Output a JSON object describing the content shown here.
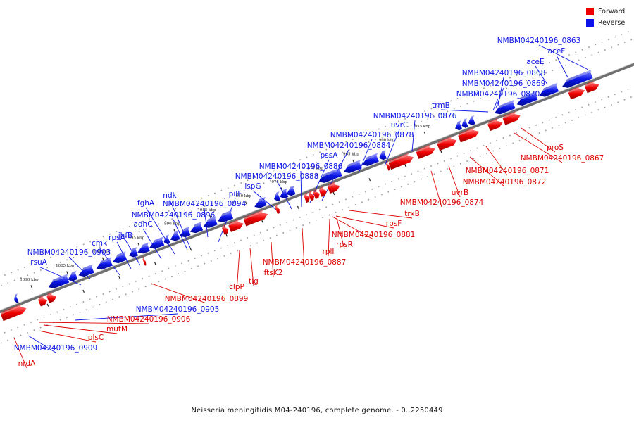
{
  "caption": "Neisseria meningitidis M04-240196, complete genome. - 0..2250449",
  "legend": [
    {
      "label": "Forward",
      "color": "#ee0000"
    },
    {
      "label": "Reverse",
      "color": "#0a14e6"
    }
  ],
  "colors": {
    "forward": "#ee0000",
    "reverse": "#0a14e6",
    "backbone": "#777777"
  },
  "ticks": [
    {
      "label": "955 kbp"
    },
    {
      "label": "960 kbp"
    },
    {
      "label": "965 kbp"
    },
    {
      "label": "970 kbp"
    },
    {
      "label": "975 kbp"
    },
    {
      "label": "980 kbp"
    },
    {
      "label": "985 kbp"
    },
    {
      "label": "990 kbp"
    },
    {
      "label": "995 kbp"
    },
    {
      "label": "1000 kbp"
    },
    {
      "label": "1005 kbp"
    },
    {
      "label": "1010 kbp"
    }
  ],
  "reverse_genes": [
    {
      "label": "NMBM04240196_0863"
    },
    {
      "label": "aceF"
    },
    {
      "label": "aceE"
    },
    {
      "label": "NMBM04240196_0868"
    },
    {
      "label": "NMBM04240196_0869"
    },
    {
      "label": "NMBM04240196_0870"
    },
    {
      "label": "trmB"
    },
    {
      "label": "NMBM04240196_0876"
    },
    {
      "label": "uvrC"
    },
    {
      "label": "NMBM04240196_0878"
    },
    {
      "label": "NMBM04240196_0884"
    },
    {
      "label": "pssA"
    },
    {
      "label": "NMBM04240196_0886"
    },
    {
      "label": "NMBM04240196_0888"
    },
    {
      "label": "ispG"
    },
    {
      "label": "pilF"
    },
    {
      "label": "NMBM04240196_0894"
    },
    {
      "label": "ndk"
    },
    {
      "label": "fghA"
    },
    {
      "label": "NMBM04240196_0896"
    },
    {
      "label": "adhC"
    },
    {
      "label": "ihfB"
    },
    {
      "label": "rpsA"
    },
    {
      "label": "cmk"
    },
    {
      "label": "NMBM04240196_0903"
    },
    {
      "label": "rsuA"
    },
    {
      "label": "NMBM04240196_0905"
    },
    {
      "label": "NMBM04240196_0909"
    }
  ],
  "forward_genes": [
    {
      "label": "proS"
    },
    {
      "label": "NMBM04240196_0867"
    },
    {
      "label": "NMBM04240196_0871"
    },
    {
      "label": "NMBM04240196_0872"
    },
    {
      "label": "uvrB"
    },
    {
      "label": "NMBM04240196_0874"
    },
    {
      "label": "trxB"
    },
    {
      "label": "rpsF"
    },
    {
      "label": "NMBM04240196_0881"
    },
    {
      "label": "rpsR"
    },
    {
      "label": "rplI"
    },
    {
      "label": "NMBM04240196_0887"
    },
    {
      "label": "ftsK2"
    },
    {
      "label": "tig"
    },
    {
      "label": "clpP"
    },
    {
      "label": "NMBM04240196_0899"
    },
    {
      "label": "NMBM04240196_0906"
    },
    {
      "label": "mutM"
    },
    {
      "label": "plsC"
    },
    {
      "label": "nrdA"
    }
  ]
}
